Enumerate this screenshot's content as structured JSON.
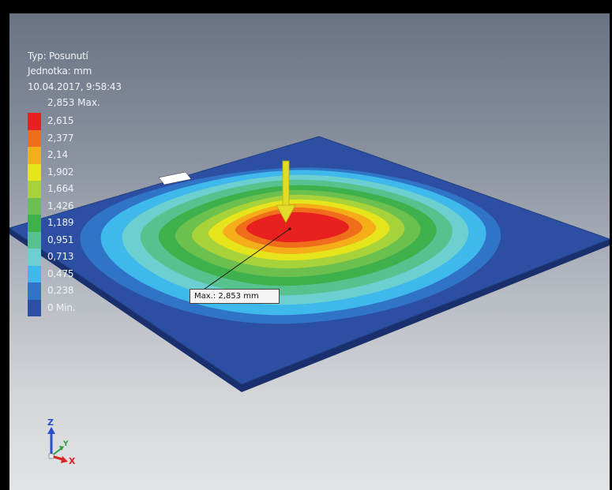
{
  "legend": {
    "type_line": "Typ: Posunutí",
    "unit_line": "Jednotka: mm",
    "date_line": "10.04.2017, 9:58:43",
    "max_label": "2,853 Max.",
    "entries": [
      {
        "label": "2,615",
        "color": "#e8201e"
      },
      {
        "label": "2,377",
        "color": "#f06d1c"
      },
      {
        "label": "2,14",
        "color": "#f5ad1a"
      },
      {
        "label": "1,902",
        "color": "#e6e51c"
      },
      {
        "label": "1,664",
        "color": "#a7d23a"
      },
      {
        "label": "1,426",
        "color": "#6cc14e"
      },
      {
        "label": "1,189",
        "color": "#3fb14c"
      },
      {
        "label": "0,951",
        "color": "#58c28e"
      },
      {
        "label": "0,713",
        "color": "#6cd0d0"
      },
      {
        "label": "0,475",
        "color": "#3fb8ec"
      },
      {
        "label": "0,238",
        "color": "#2f74c6"
      },
      {
        "label": "0 Min.",
        "color": "#2c4ea3"
      }
    ]
  },
  "probe": {
    "label": "Max.: 2,853 mm"
  },
  "triad": {
    "z": "Z",
    "y": "Y",
    "x": "X"
  },
  "colors": {
    "plate_top": "#2c4ea3",
    "plate_edge": "#1a2f6e",
    "load_arrow": "#e2dc28"
  }
}
